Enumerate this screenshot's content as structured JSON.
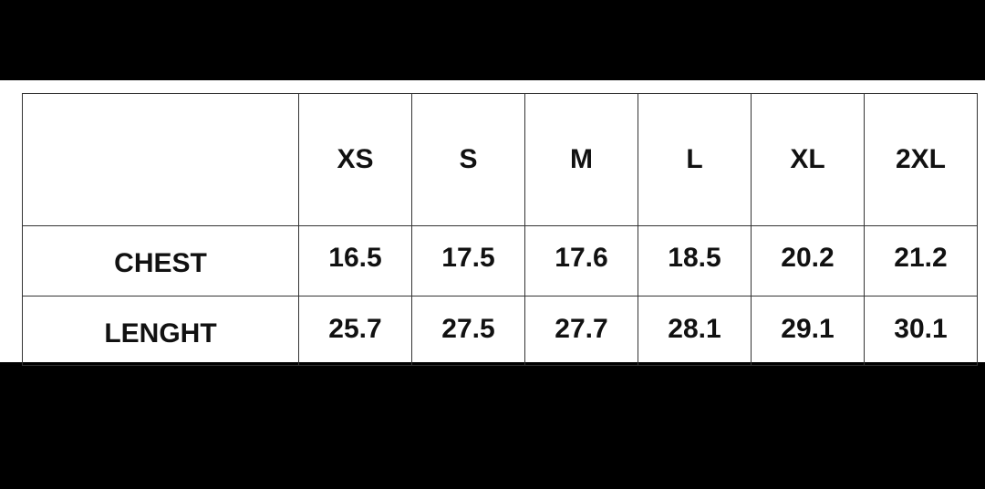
{
  "size_chart": {
    "corner_label": "",
    "sizes": [
      "XS",
      "S",
      "M",
      "L",
      "XL",
      "2XL"
    ],
    "rows": [
      {
        "label": "CHEST",
        "values": [
          "16.5",
          "17.5",
          "17.6",
          "18.5",
          "20.2",
          "21.2"
        ]
      },
      {
        "label": "LENGHT",
        "values": [
          "25.7",
          "27.5",
          "27.7",
          "28.1",
          "29.1",
          "30.1"
        ]
      }
    ]
  }
}
